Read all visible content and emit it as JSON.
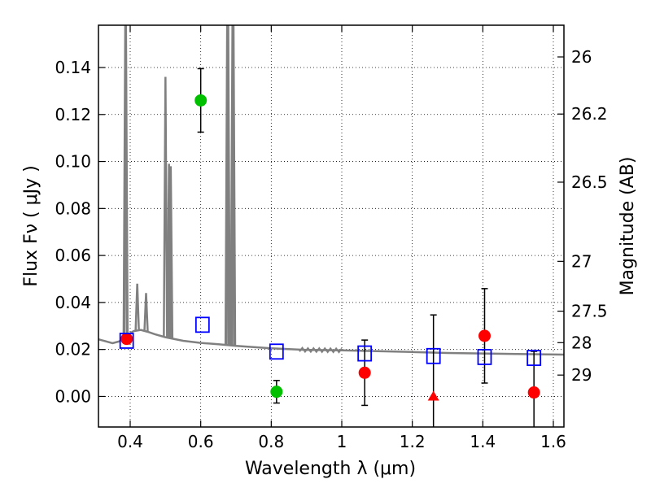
{
  "chart_data": {
    "type": "scatter",
    "xlabel": "Wavelength  λ (μm)",
    "ylabel": "Flux  Fν  ( μJy )",
    "ylabel_right": "Magnitude (AB)",
    "xlim": [
      0.31,
      1.63
    ],
    "ylim": [
      -0.013,
      0.158
    ],
    "grid": true,
    "xticks": [
      0.4,
      0.6,
      0.8,
      1.0,
      1.2,
      1.4,
      1.6
    ],
    "xtick_labels": [
      "0.4",
      "0.6",
      "0.8",
      "1",
      "1.2",
      "1.4",
      "1.6"
    ],
    "yticks": [
      0.0,
      0.02,
      0.04,
      0.06,
      0.08,
      0.1,
      0.12,
      0.14
    ],
    "ytick_labels": [
      "0.00",
      "0.02",
      "0.04",
      "0.06",
      "0.08",
      "0.10",
      "0.12",
      "0.14"
    ],
    "mag_ticks": [
      {
        "label": "26",
        "flux": 0.1445
      },
      {
        "label": "26.2",
        "flux": 0.1202
      },
      {
        "label": "26.5",
        "flux": 0.0912
      },
      {
        "label": "27",
        "flux": 0.0575
      },
      {
        "label": "27.5",
        "flux": 0.0363
      },
      {
        "label": "28",
        "flux": 0.0229
      },
      {
        "label": "29",
        "flux": 0.0091
      }
    ],
    "colors": {
      "model": "#808080",
      "green": "#00c000",
      "red": "#ff0000",
      "blue": "#0000ff",
      "errorbar": "#000000"
    },
    "model_continuum": [
      [
        0.31,
        0.0243
      ],
      [
        0.33,
        0.0235
      ],
      [
        0.35,
        0.0227
      ],
      [
        0.37,
        0.0235
      ],
      [
        0.38,
        0.0252
      ],
      [
        0.395,
        0.0265
      ],
      [
        0.41,
        0.0278
      ],
      [
        0.43,
        0.0283
      ],
      [
        0.45,
        0.0275
      ],
      [
        0.47,
        0.0265
      ],
      [
        0.5,
        0.0252
      ],
      [
        0.55,
        0.0237
      ],
      [
        0.6,
        0.0228
      ],
      [
        0.65,
        0.0222
      ],
      [
        0.7,
        0.0215
      ],
      [
        0.8,
        0.0205
      ],
      [
        0.9,
        0.0198
      ],
      [
        1.0,
        0.0196
      ],
      [
        1.1,
        0.0193
      ],
      [
        1.2,
        0.0189
      ],
      [
        1.3,
        0.0185
      ],
      [
        1.4,
        0.0183
      ],
      [
        1.5,
        0.0181
      ],
      [
        1.63,
        0.0178
      ]
    ],
    "model_emission_lines": [
      {
        "x": 0.386,
        "peak": 0.158
      },
      {
        "x": 0.388,
        "peak": 0.158
      },
      {
        "x": 0.42,
        "peak": 0.048
      },
      {
        "x": 0.445,
        "peak": 0.044
      },
      {
        "x": 0.5,
        "peak": 0.136
      },
      {
        "x": 0.51,
        "peak": 0.099
      },
      {
        "x": 0.515,
        "peak": 0.098
      },
      {
        "x": 0.675,
        "peak": 0.158
      },
      {
        "x": 0.678,
        "peak": 0.158
      },
      {
        "x": 0.69,
        "peak": 0.158
      },
      {
        "x": 0.693,
        "peak": 0.158
      }
    ],
    "series": [
      {
        "name": "detections_green",
        "marker": "circle",
        "color": "#00c000",
        "points": [
          {
            "x": 0.6,
            "y": 0.126,
            "yerr": 0.0135
          },
          {
            "x": 0.815,
            "y": 0.002,
            "yerr": 0.0048
          }
        ]
      },
      {
        "name": "detections_red",
        "marker": "circle",
        "color": "#ff0000",
        "points": [
          {
            "x": 0.39,
            "y": 0.0245,
            "yerr": null
          },
          {
            "x": 1.065,
            "y": 0.0101,
            "yerr": 0.0139
          },
          {
            "x": 1.405,
            "y": 0.0258,
            "yerr": 0.0201
          },
          {
            "x": 1.545,
            "y": 0.0017,
            "yerr": 0.0175
          }
        ]
      },
      {
        "name": "upper_limit_red",
        "marker": "triangle",
        "color": "#ff0000",
        "points": [
          {
            "x": 1.26,
            "y": 0.0,
            "yerr": 0.0347
          }
        ]
      },
      {
        "name": "model_photometry",
        "marker": "square-open",
        "color": "#0000ff",
        "points": [
          {
            "x": 0.39,
            "y": 0.0237
          },
          {
            "x": 0.605,
            "y": 0.0305
          },
          {
            "x": 0.815,
            "y": 0.0191
          },
          {
            "x": 1.065,
            "y": 0.0183
          },
          {
            "x": 1.26,
            "y": 0.0172
          },
          {
            "x": 1.405,
            "y": 0.0168
          },
          {
            "x": 1.545,
            "y": 0.0164
          }
        ]
      }
    ]
  }
}
